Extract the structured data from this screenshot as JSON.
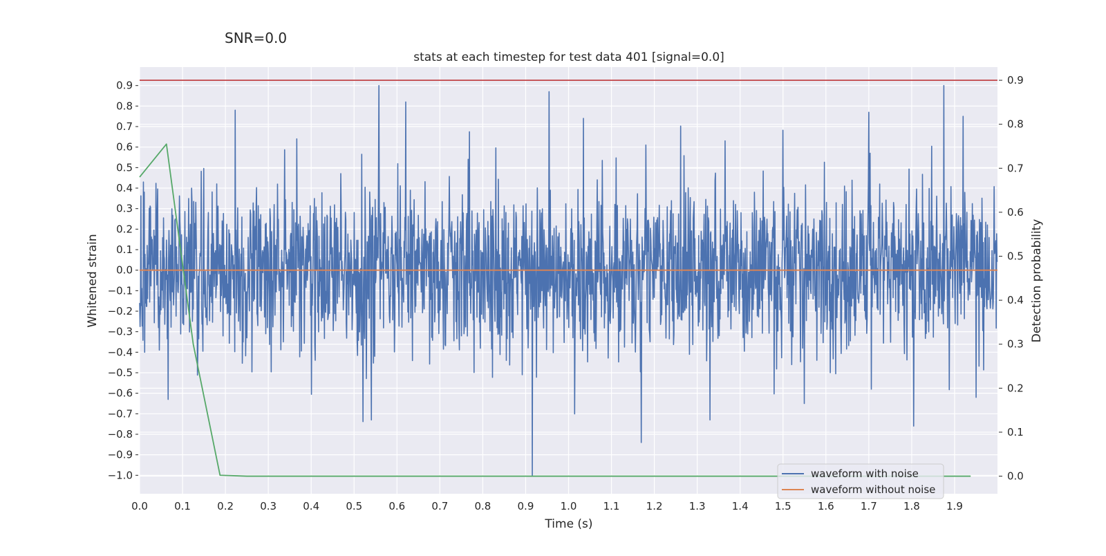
{
  "chart_data": {
    "type": "line",
    "suptitle": "SNR=0.0",
    "title": "stats at each timestep for test data 401 [signal=0.0]",
    "xlabel": "Time (s)",
    "ylabel_left": "Whitened strain",
    "ylabel_right": "Detection probability",
    "xlim": [
      0.0,
      2.0
    ],
    "ylim_left": [
      -1.09,
      0.99
    ],
    "ylim_right": [
      -0.04,
      0.93
    ],
    "grid": true,
    "legend_position": "lower-right",
    "x_ticks": [
      "0.0",
      "0.1",
      "0.2",
      "0.3",
      "0.4",
      "0.5",
      "0.6",
      "0.7",
      "0.8",
      "0.9",
      "1.0",
      "1.1",
      "1.2",
      "1.3",
      "1.4",
      "1.5",
      "1.6",
      "1.7",
      "1.8",
      "1.9"
    ],
    "y_ticks_left": [
      "0.9",
      "0.8",
      "0.7",
      "0.6",
      "0.5",
      "0.4",
      "0.3",
      "0.2",
      "0.1",
      "0.0",
      "−0.1",
      "−0.2",
      "−0.3",
      "−0.4",
      "−0.5",
      "−0.6",
      "−0.7",
      "−0.8",
      "−0.9",
      "−1.0"
    ],
    "y_ticks_right": [
      "0.9",
      "0.8",
      "0.7",
      "0.6",
      "0.5",
      "0.4",
      "0.3",
      "0.2",
      "0.1",
      "0.0"
    ],
    "series": [
      {
        "name": "waveform with noise",
        "axis": "left",
        "color": "#4c72b0",
        "kind": "noise",
        "n_points": 2048,
        "x_range": [
          0.0,
          2.0
        ],
        "std": 0.2,
        "peaks": [
          {
            "x": 0.009,
            "y": 0.43
          },
          {
            "x": 0.066,
            "y": -0.63
          },
          {
            "x": 0.121,
            "y": 0.4
          },
          {
            "x": 0.223,
            "y": 0.78
          },
          {
            "x": 0.366,
            "y": 0.64
          },
          {
            "x": 0.54,
            "y": -0.73
          },
          {
            "x": 0.558,
            "y": 0.9
          },
          {
            "x": 0.62,
            "y": 0.82
          },
          {
            "x": 0.915,
            "y": -1.0
          },
          {
            "x": 0.955,
            "y": 0.87
          },
          {
            "x": 1.035,
            "y": 0.74
          },
          {
            "x": 1.17,
            "y": -0.84
          },
          {
            "x": 1.18,
            "y": 0.61
          },
          {
            "x": 1.33,
            "y": -0.73
          },
          {
            "x": 1.55,
            "y": -0.65
          },
          {
            "x": 1.7,
            "y": 0.77
          },
          {
            "x": 1.805,
            "y": -0.76
          },
          {
            "x": 1.875,
            "y": 0.9
          },
          {
            "x": 1.92,
            "y": 0.75
          },
          {
            "x": 1.95,
            "y": -0.62
          }
        ]
      },
      {
        "name": "waveform without noise",
        "axis": "left",
        "color": "#dd8452",
        "x": [
          0.0,
          2.0
        ],
        "y": [
          0.0,
          0.0
        ]
      },
      {
        "name": "Detection probability",
        "axis": "right",
        "color": "#55a868",
        "x": [
          0.0,
          0.0625,
          0.125,
          0.1875,
          0.25,
          0.3125,
          1.9375
        ],
        "y": [
          0.68,
          0.755,
          0.3,
          0.002,
          0.0,
          0.0,
          0.0
        ]
      },
      {
        "name": "threshold",
        "axis": "right",
        "color": "#c44e52",
        "x": [
          0.0,
          2.0
        ],
        "y": [
          0.9,
          0.9
        ]
      }
    ],
    "legend": [
      {
        "label": "waveform with noise",
        "color": "#4c72b0"
      },
      {
        "label": "waveform without noise",
        "color": "#dd8452"
      }
    ]
  }
}
